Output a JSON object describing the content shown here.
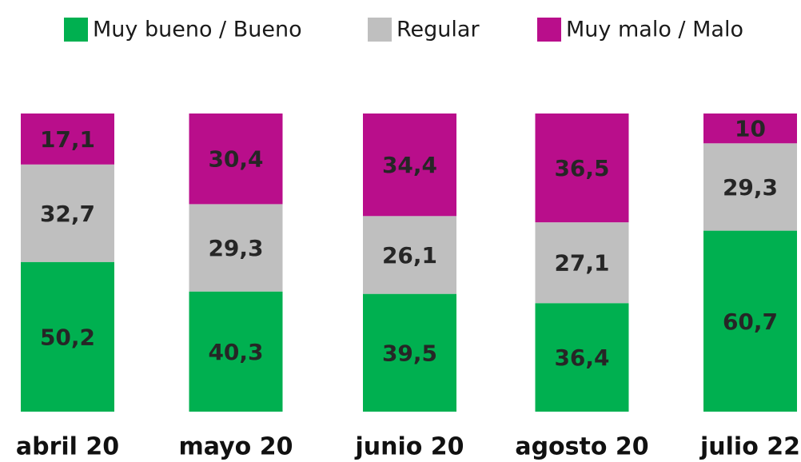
{
  "chart_data": {
    "type": "stacked_bar",
    "categories": [
      "abril 20",
      "mayo 20",
      "junio 20",
      "agosto 20",
      "julio 22"
    ],
    "series": [
      {
        "name": "Muy bueno / Bueno",
        "color": "#00b050",
        "values": [
          50.2,
          40.3,
          39.5,
          36.4,
          60.7
        ],
        "value_labels": [
          "50,2",
          "40,3",
          "39,5",
          "36,4",
          "60,7"
        ]
      },
      {
        "name": "Regular",
        "color": "#bfbfbf",
        "values": [
          32.7,
          29.3,
          26.1,
          27.1,
          29.3
        ],
        "value_labels": [
          "32,7",
          "29,3",
          "26,1",
          "27,1",
          "29,3"
        ]
      },
      {
        "name": "Muy malo / Malo",
        "color": "#b90e8b",
        "values": [
          17.1,
          30.4,
          34.4,
          36.5,
          10
        ],
        "value_labels": [
          "17,1",
          "30,4",
          "34,4",
          "36,5",
          "10"
        ]
      }
    ],
    "ylim": [
      0,
      100
    ],
    "legend": "top"
  }
}
